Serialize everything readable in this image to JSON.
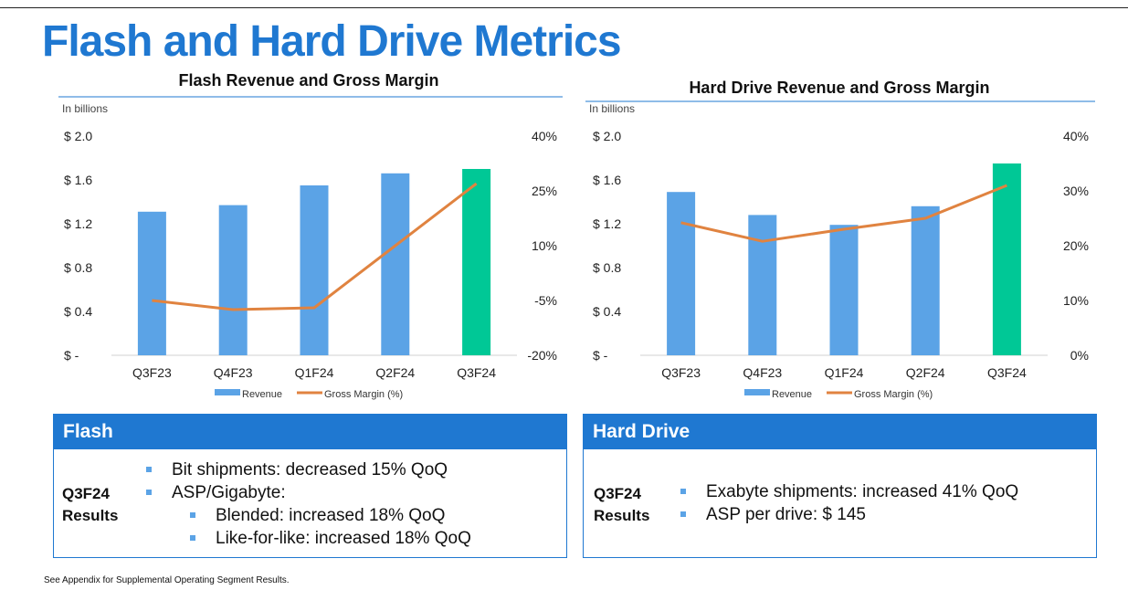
{
  "page": {
    "title": "Flash and Hard Drive Metrics",
    "footnote": "See Appendix for Supplemental Operating Segment Results."
  },
  "colors": {
    "title_blue": "#1f78d1",
    "bar": "#5ba3e6",
    "bar_highlight": "#00c896",
    "line": "#e08340"
  },
  "chart_data": [
    {
      "type": "bar",
      "title": "Flash Revenue and Gross Margin",
      "unit_label": "In billions",
      "categories": [
        "Q3F23",
        "Q4F23",
        "Q1F24",
        "Q2F24",
        "Q3F24"
      ],
      "series": [
        {
          "name": "Revenue",
          "type": "bar",
          "axis": "left",
          "values": [
            1.31,
            1.37,
            1.55,
            1.66,
            1.7
          ]
        },
        {
          "name": "Gross Margin (%)",
          "type": "line",
          "axis": "right",
          "values": [
            -5.0,
            -7.5,
            -7.0,
            10.0,
            27.0
          ]
        }
      ],
      "highlight_index": 4,
      "y_left": {
        "range": [
          0,
          2.0
        ],
        "ticks": [
          0,
          0.4,
          0.8,
          1.2,
          1.6,
          2.0
        ],
        "tick_labels": [
          "$ -",
          "$ 0.4",
          "$ 0.8",
          "$ 1.2",
          "$ 1.6",
          "$ 2.0"
        ]
      },
      "y_right": {
        "range": [
          -20,
          40
        ],
        "ticks": [
          -20,
          -5,
          10,
          25,
          40
        ],
        "tick_labels": [
          "-20%",
          "-5%",
          "10%",
          "25%",
          "40%"
        ]
      },
      "legend": [
        "Revenue",
        "Gross Margin (%)"
      ],
      "legend_position": "bottom"
    },
    {
      "type": "bar",
      "title": "Hard Drive Revenue and Gross Margin",
      "unit_label": "In billions",
      "categories": [
        "Q3F23",
        "Q4F23",
        "Q1F24",
        "Q2F24",
        "Q3F24"
      ],
      "series": [
        {
          "name": "Revenue",
          "type": "bar",
          "axis": "left",
          "values": [
            1.49,
            1.28,
            1.19,
            1.36,
            1.75
          ]
        },
        {
          "name": "Gross Margin (%)",
          "type": "line",
          "axis": "right",
          "values": [
            24.2,
            20.8,
            23.0,
            25.0,
            31.0
          ]
        }
      ],
      "highlight_index": 4,
      "y_left": {
        "range": [
          0,
          2.0
        ],
        "ticks": [
          0,
          0.4,
          0.8,
          1.2,
          1.6,
          2.0
        ],
        "tick_labels": [
          "$ -",
          "$ 0.4",
          "$ 0.8",
          "$ 1.2",
          "$ 1.6",
          "$ 2.0"
        ]
      },
      "y_right": {
        "range": [
          0,
          40
        ],
        "ticks": [
          0,
          10,
          20,
          30,
          40
        ],
        "tick_labels": [
          "0%",
          "10%",
          "20%",
          "30%",
          "40%"
        ]
      },
      "legend": [
        "Revenue",
        "Gross Margin (%)"
      ],
      "legend_position": "bottom"
    }
  ],
  "flash_panel": {
    "header": "Flash",
    "label_line1": "Q3F24",
    "label_line2": "Results",
    "bullets": [
      "Bit shipments: decreased 15% QoQ",
      "ASP/Gigabyte:",
      "Blended: increased 18% QoQ",
      "Like-for-like: increased 18% QoQ"
    ]
  },
  "hdd_panel": {
    "header": "Hard Drive",
    "label_line1": "Q3F24",
    "label_line2": "Results",
    "bullets": [
      "Exabyte shipments: increased 41% QoQ",
      "ASP per drive: $ 145"
    ]
  }
}
